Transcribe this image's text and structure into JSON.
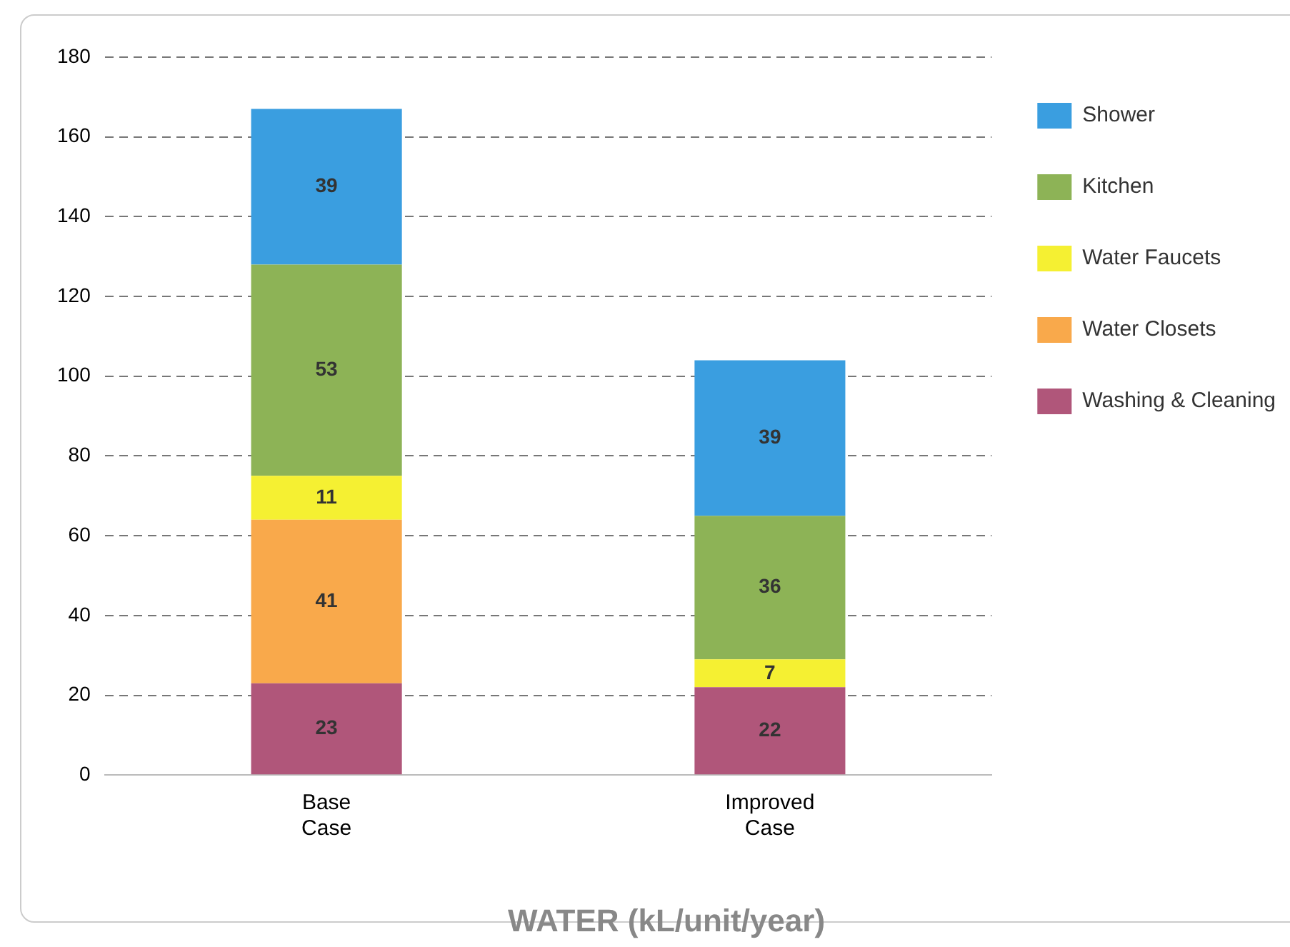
{
  "chart_data": {
    "type": "bar",
    "title": "WATER (kL/unit/year)",
    "categories": [
      "Base Case",
      "Improved Case"
    ],
    "stacked": true,
    "series": [
      {
        "name": "Washing & Cleaning",
        "color": "#b0567a",
        "values": [
          23,
          22
        ]
      },
      {
        "name": "Water Closets",
        "color": "#f9a94b",
        "values": [
          41,
          null
        ]
      },
      {
        "name": "Water Faucets",
        "color": "#f5f032",
        "values": [
          11,
          7
        ]
      },
      {
        "name": "Kitchen",
        "color": "#8db356",
        "values": [
          53,
          36
        ]
      },
      {
        "name": "Shower",
        "color": "#3a9ee0",
        "values": [
          39,
          39
        ]
      }
    ],
    "ylim": [
      0,
      180
    ],
    "yticks": [
      0,
      20,
      40,
      60,
      80,
      100,
      120,
      140,
      160,
      180
    ],
    "grid": "y",
    "legend": "right",
    "data_labels": true
  }
}
